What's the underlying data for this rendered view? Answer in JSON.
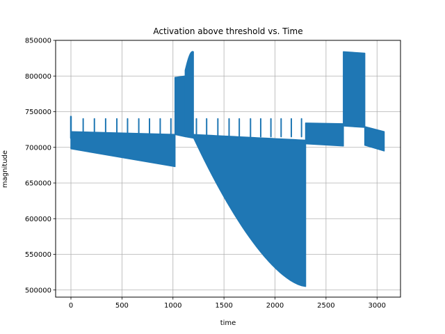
{
  "chart_data": {
    "type": "line",
    "title": "Activation above threshold vs. Time",
    "xlabel": "time",
    "ylabel": "magnitude",
    "xlim": [
      -150,
      3230
    ],
    "ylim": [
      490000,
      850000
    ],
    "xticks": [
      0,
      500,
      1000,
      1500,
      2000,
      2500,
      3000
    ],
    "xtick_labels": [
      "0",
      "500",
      "1000",
      "1500",
      "2000",
      "2500",
      "3000"
    ],
    "yticks": [
      500000,
      550000,
      600000,
      650000,
      700000,
      750000,
      800000,
      850000
    ],
    "ytick_labels": [
      "500000",
      "550000",
      "600000",
      "650000",
      "700000",
      "750000",
      "800000",
      "850000"
    ],
    "grid": true,
    "line_color": "#1f77b4",
    "series": [
      {
        "name": "",
        "envelope_segments": [
          {
            "x": [
              0,
              1020
            ],
            "upper": [
              722000,
              718000
            ],
            "lower": [
              698000,
              673000
            ]
          },
          {
            "x": [
              1020,
              1120
            ],
            "upper": [
              798000,
              800000
            ],
            "lower": [
              718000,
              715000
            ]
          },
          {
            "x": [
              1120,
              1200
            ],
            "upper": [
              808000,
              834000
            ],
            "lower": [
              715000,
              713000
            ]
          },
          {
            "x": [
              1200,
              2300
            ],
            "upper": [
              718000,
              710000
            ],
            "lower": [
              714000,
              505000
            ]
          },
          {
            "x": [
              2300,
              2670
            ],
            "upper": [
              734000,
              733000
            ],
            "lower": [
              705000,
              702000
            ]
          },
          {
            "x": [
              2670,
              2880
            ],
            "upper": [
              834000,
              832000
            ],
            "lower": [
              730000,
              728000
            ]
          },
          {
            "x": [
              2880,
              3070
            ],
            "upper": [
              729000,
              722000
            ],
            "lower": [
              703000,
              695000
            ]
          }
        ],
        "spikes": [
          {
            "x": 120,
            "y": 740000
          },
          {
            "x": 230,
            "y": 740000
          },
          {
            "x": 340,
            "y": 740000
          },
          {
            "x": 450,
            "y": 740000
          },
          {
            "x": 555,
            "y": 740000
          },
          {
            "x": 665,
            "y": 740000
          },
          {
            "x": 770,
            "y": 740000
          },
          {
            "x": 875,
            "y": 740000
          },
          {
            "x": 980,
            "y": 740000
          },
          {
            "x": 1230,
            "y": 740000
          },
          {
            "x": 1330,
            "y": 740000
          },
          {
            "x": 1440,
            "y": 740000
          },
          {
            "x": 1550,
            "y": 740000
          },
          {
            "x": 1650,
            "y": 740000
          },
          {
            "x": 1760,
            "y": 740000
          },
          {
            "x": 1860,
            "y": 740000
          },
          {
            "x": 1960,
            "y": 740000
          },
          {
            "x": 2060,
            "y": 740000
          },
          {
            "x": 2160,
            "y": 740000
          },
          {
            "x": 2260,
            "y": 740000
          }
        ],
        "start_point": {
          "x": 0,
          "y": 743000
        }
      }
    ]
  }
}
